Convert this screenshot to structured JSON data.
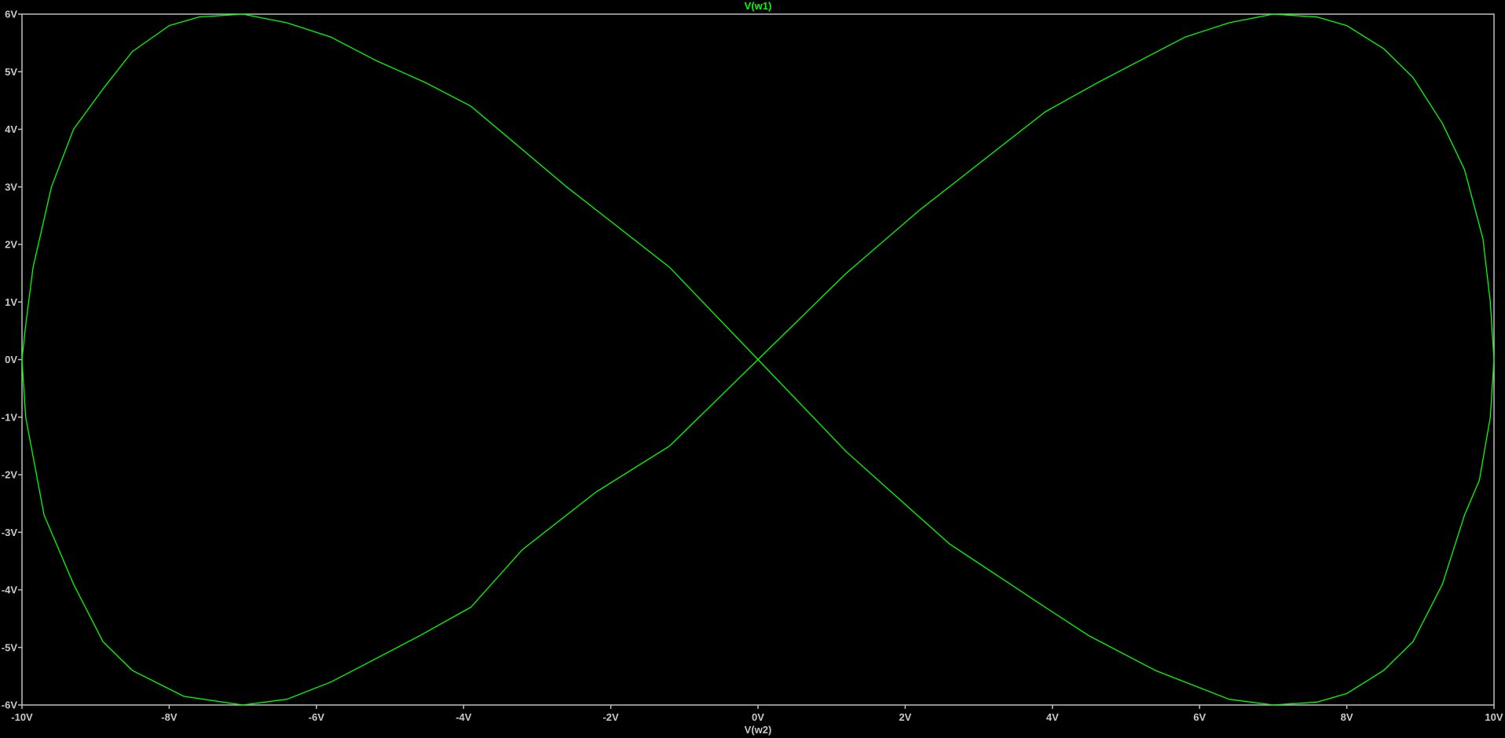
{
  "chart_data": {
    "type": "line",
    "title": "V(w1)",
    "xlabel": "V(w2)",
    "ylabel": "",
    "xlim": [
      -10,
      10
    ],
    "ylim": [
      -6,
      6
    ],
    "grid": false,
    "x_ticks": [
      {
        "value": -10,
        "label": "-10V"
      },
      {
        "value": -8,
        "label": "-8V"
      },
      {
        "value": -6,
        "label": "-6V"
      },
      {
        "value": -4,
        "label": "-4V"
      },
      {
        "value": -2,
        "label": "-2V"
      },
      {
        "value": 0,
        "label": "0V"
      },
      {
        "value": 2,
        "label": "2V"
      },
      {
        "value": 4,
        "label": "4V"
      },
      {
        "value": 6,
        "label": "6V"
      },
      {
        "value": 8,
        "label": "8V"
      },
      {
        "value": 10,
        "label": "10V"
      }
    ],
    "y_ticks": [
      {
        "value": 6,
        "label": "6V"
      },
      {
        "value": 5,
        "label": "5V"
      },
      {
        "value": 4,
        "label": "4V"
      },
      {
        "value": 3,
        "label": "3V"
      },
      {
        "value": 2,
        "label": "2V"
      },
      {
        "value": 1,
        "label": "1V"
      },
      {
        "value": 0,
        "label": "0V"
      },
      {
        "value": -1,
        "label": "-1V"
      },
      {
        "value": -2,
        "label": "-2V"
      },
      {
        "value": -3,
        "label": "-3V"
      },
      {
        "value": -4,
        "label": "-4V"
      },
      {
        "value": -5,
        "label": "-5V"
      },
      {
        "value": -6,
        "label": "-6V"
      }
    ],
    "series": [
      {
        "color": "#00ff00",
        "x": [
          0,
          1.2,
          2.2,
          3.2,
          3.9,
          4.6,
          5.2,
          5.8,
          6.4,
          7.0,
          7.6,
          8.0,
          8.5,
          8.9,
          9.3,
          9.6,
          9.85,
          9.95,
          10.0,
          9.95,
          9.8,
          9.6,
          9.3,
          8.9,
          8.5,
          8.0,
          7.6,
          7.0,
          6.4,
          5.4,
          4.5,
          3.9,
          2.6,
          1.2,
          0,
          -1.2,
          -2.2,
          -2.6,
          -3.9,
          -4.5,
          -5.2,
          -5.8,
          -6.4,
          -7.0,
          -7.6,
          -8.0,
          -8.5,
          -8.9,
          -9.3,
          -9.6,
          -9.85,
          -9.95,
          -10.0,
          -9.95,
          -9.7,
          -9.3,
          -8.9,
          -8.5,
          -7.8,
          -7.0,
          -6.4,
          -5.8,
          -5.2,
          -4.6,
          -3.9,
          -3.2,
          -2.2,
          -1.2,
          0
        ],
        "y": [
          0,
          1.5,
          2.6,
          3.6,
          4.3,
          4.8,
          5.2,
          5.6,
          5.85,
          6.0,
          5.95,
          5.8,
          5.4,
          4.9,
          4.1,
          3.3,
          2.1,
          1.0,
          0,
          -1.0,
          -2.1,
          -2.7,
          -3.9,
          -4.9,
          -5.4,
          -5.8,
          -5.95,
          -6.0,
          -5.9,
          -5.4,
          -4.8,
          -4.3,
          -3.2,
          -1.6,
          0,
          1.6,
          2.6,
          3.0,
          4.4,
          4.8,
          5.2,
          5.6,
          5.85,
          6.0,
          5.95,
          5.8,
          5.35,
          4.7,
          4.0,
          3.0,
          1.6,
          0.6,
          0,
          -1.0,
          -2.7,
          -3.9,
          -4.9,
          -5.4,
          -5.85,
          -6.0,
          -5.9,
          -5.6,
          -5.2,
          -4.8,
          -4.3,
          -3.3,
          -2.3,
          -1.5,
          0
        ]
      }
    ]
  }
}
